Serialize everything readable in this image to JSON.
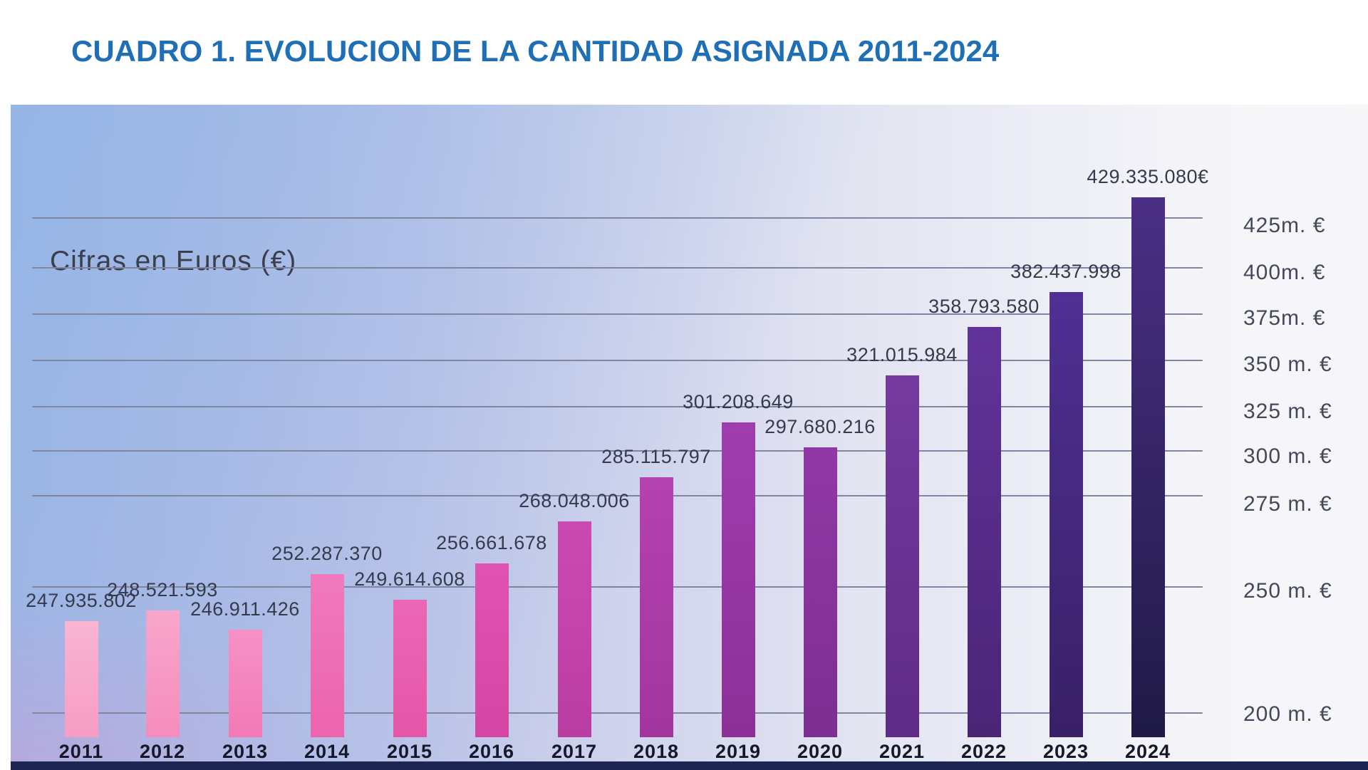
{
  "page": {
    "title": "CUADRO 1. EVOLUCION DE LA CANTIDAD ASIGNADA 2011-2024"
  },
  "chart_data": {
    "type": "bar",
    "title": "CUADRO 1. EVOLUCION DE LA CANTIDAD ASIGNADA 2011-2024",
    "subtitle": "Cifras en Euros (€)",
    "categories": [
      "2011",
      "2012",
      "2013",
      "2014",
      "2015",
      "2016",
      "2017",
      "2018",
      "2019",
      "2020",
      "2021",
      "2022",
      "2023",
      "2024"
    ],
    "values": [
      247935802,
      248521593,
      246911426,
      252287370,
      249614608,
      256661678,
      268048006,
      285115797,
      301208649,
      297680216,
      321015984,
      358793580,
      382437998,
      429335080
    ],
    "labels": [
      "247.935.802",
      "248.521.593",
      "246.911.426",
      "252.287.370",
      "249.614.608",
      "256.661.678",
      "268.048.006",
      "285.115.797",
      "301.208.649",
      "297.680.216",
      "321.015.984",
      "358.793.580",
      "382.437.998",
      "429.335.080€"
    ],
    "y_ticks": [
      "425m. €",
      "400m. €",
      "375m. €",
      "350 m. €",
      "325 m. €",
      "300 m. €",
      "275 m. €",
      "250 m. €",
      "200 m. €"
    ],
    "y_tick_values_millions": [
      425,
      400,
      375,
      350,
      325,
      300,
      275,
      250,
      200
    ],
    "ylim": [
      200000000,
      430000000
    ],
    "xlabel": "",
    "ylabel": "",
    "grid": true,
    "legend": false
  },
  "colors": {
    "title_blue": "#1e6fb5",
    "subtitle_text": "#3a3f4b",
    "value_label_text": "#353a4c",
    "year_label_text": "#15182a",
    "y_tick_text": "#44495a",
    "gridline": "#7e86a2",
    "bottom_strip_navy": "#1d2553",
    "bar_gradients": [
      [
        "#f9b5d3",
        "#f79cc3"
      ],
      [
        "#f8a6cb",
        "#f58cbd"
      ],
      [
        "#f691c5",
        "#f279b5"
      ],
      [
        "#f079bd",
        "#ec64ad"
      ],
      [
        "#ec66b6",
        "#e556a8"
      ],
      [
        "#e052b2",
        "#d645a3"
      ],
      [
        "#cb4ab2",
        "#ba3da1"
      ],
      [
        "#b442b0",
        "#a2369d"
      ],
      [
        "#a03dae",
        "#8c3098"
      ],
      [
        "#9138a6",
        "#7d2e91"
      ],
      [
        "#753a9f",
        "#5e2b86"
      ],
      [
        "#61339a",
        "#4a2576"
      ],
      [
        "#503094",
        "#392067"
      ],
      [
        "#4b2f85",
        "#1f1a46"
      ]
    ]
  }
}
